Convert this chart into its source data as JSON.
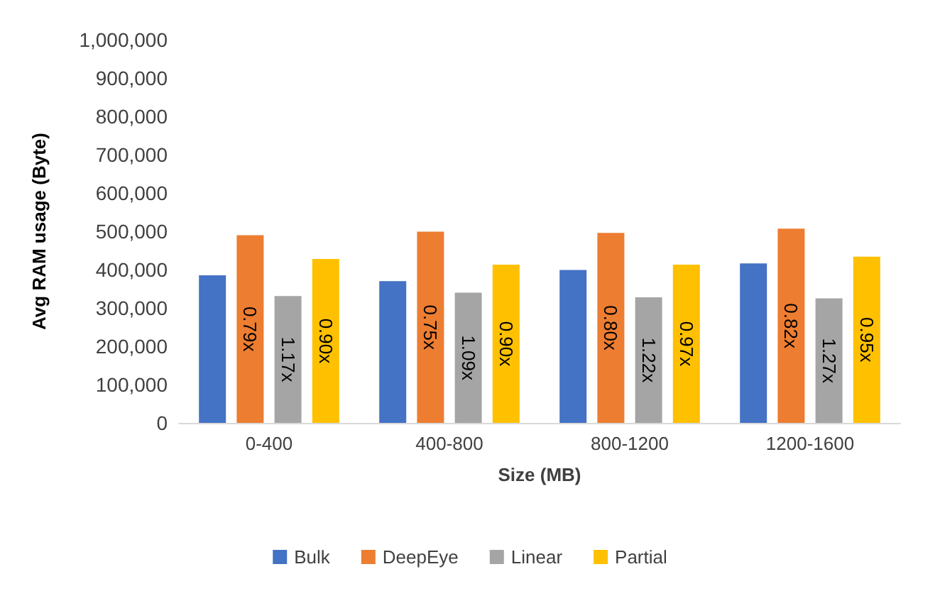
{
  "chart_data": {
    "type": "bar",
    "xlabel": "Size (MB)",
    "ylabel": "Avg RAM usage (Byte)",
    "categories": [
      "0-400",
      "400-800",
      "800-1200",
      "1200-1600"
    ],
    "series": [
      {
        "name": "Bulk",
        "color": "#4472c4",
        "values": [
          385000,
          370000,
          399000,
          416000
        ]
      },
      {
        "name": "DeepEye",
        "color": "#ed7d31",
        "values": [
          490000,
          499000,
          496000,
          507000
        ]
      },
      {
        "name": "Linear",
        "color": "#a5a5a5",
        "values": [
          331000,
          340000,
          328000,
          325000
        ]
      },
      {
        "name": "Partial",
        "color": "#ffc000",
        "values": [
          428000,
          413000,
          413000,
          434000
        ]
      }
    ],
    "annotations": [
      {
        "text": "0.79x",
        "x": "0-400",
        "y": 245000
      },
      {
        "text": "1.17x",
        "x": "0-400",
        "y": 165500
      },
      {
        "text": "0.90x",
        "x": "0-400",
        "y": 214000
      },
      {
        "text": "0.75x",
        "x": "400-800",
        "y": 249500
      },
      {
        "text": "1.09x",
        "x": "400-800",
        "y": 170000
      },
      {
        "text": "0.90x",
        "x": "400-800",
        "y": 206500
      },
      {
        "text": "0.80x",
        "x": "800-1200",
        "y": 248000
      },
      {
        "text": "1.22x",
        "x": "800-1200",
        "y": 164000
      },
      {
        "text": "0.97x",
        "x": "800-1200",
        "y": 206500
      },
      {
        "text": "0.82x",
        "x": "1200-1600",
        "y": 253500
      },
      {
        "text": "1.27x",
        "x": "1200-1600",
        "y": 162500
      },
      {
        "text": "0.95x",
        "x": "1200-1600",
        "y": 217000
      }
    ],
    "ylim": [
      0,
      1000000
    ],
    "yticks": [
      0,
      {
        "value": 100000,
        "label": "100,000"
      },
      {
        "value": 200000,
        "label": "200,000"
      },
      {
        "value": 300000,
        "label": "300,000"
      },
      {
        "value": 400000,
        "label": "400,000"
      },
      {
        "value": 500000,
        "label": "500,000"
      },
      {
        "value": 600000,
        "label": "600,000"
      },
      {
        "value": 700000,
        "label": "700,000"
      },
      {
        "value": 800000,
        "label": "800,000"
      },
      {
        "value": 900000,
        "label": "900,000"
      },
      {
        "value": 1000000,
        "label": "1,000,000"
      }
    ],
    "grid": false,
    "legend": "bottom"
  }
}
